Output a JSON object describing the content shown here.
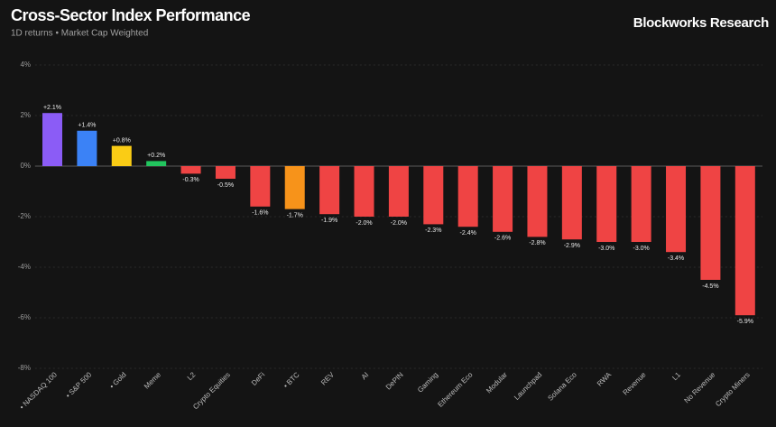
{
  "chart_data": {
    "type": "bar",
    "title": "Cross-Sector Index Performance",
    "subtitle": "1D returns • Market Cap Weighted",
    "source": "Blockworks Research",
    "categories": [
      "• NASDAQ 100",
      "• S&P 500",
      "• Gold",
      "Meme",
      "L2",
      "Crypto Equities",
      "DeFi",
      "• BTC",
      "REV",
      "AI",
      "DePIN",
      "Gaming",
      "Ethereum Eco",
      "Modular",
      "Launchpad",
      "Solana Eco",
      "RWA",
      "Revenue",
      "L1",
      "No Revenue",
      "Crypto Miners"
    ],
    "values": [
      2.1,
      1.4,
      0.8,
      0.2,
      -0.3,
      -0.5,
      -1.6,
      -1.7,
      -1.9,
      -2.0,
      -2.0,
      -2.3,
      -2.4,
      -2.6,
      -2.8,
      -2.9,
      -3.0,
      -3.0,
      -3.4,
      -4.5,
      -5.9
    ],
    "value_labels": [
      "+2.1%",
      "+1.4%",
      "+0.8%",
      "+0.2%",
      "-0.3%",
      "-0.5%",
      "-1.6%",
      "-1.7%",
      "-1.9%",
      "-2.0%",
      "-2.0%",
      "-2.3%",
      "-2.4%",
      "-2.6%",
      "-2.8%",
      "-2.9%",
      "-3.0%",
      "-3.0%",
      "-3.4%",
      "-4.5%",
      "-5.9%"
    ],
    "colors": [
      "#8b5cf6",
      "#3b82f6",
      "#facc15",
      "#22c55e",
      "#ef4444",
      "#ef4444",
      "#ef4444",
      "#f7931a",
      "#ef4444",
      "#ef4444",
      "#ef4444",
      "#ef4444",
      "#ef4444",
      "#ef4444",
      "#ef4444",
      "#ef4444",
      "#ef4444",
      "#ef4444",
      "#ef4444",
      "#ef4444",
      "#ef4444"
    ],
    "ylim": [
      -8,
      4
    ],
    "yticks": [
      {
        "value": -8,
        "label": "-8%"
      },
      {
        "value": -6,
        "label": "-6%"
      },
      {
        "value": -4,
        "label": "-4%"
      },
      {
        "value": -2,
        "label": "-2%"
      },
      {
        "value": 0,
        "label": "0%"
      },
      {
        "value": 2,
        "label": "2%"
      },
      {
        "value": 4,
        "label": "4%"
      }
    ],
    "grid": true
  }
}
